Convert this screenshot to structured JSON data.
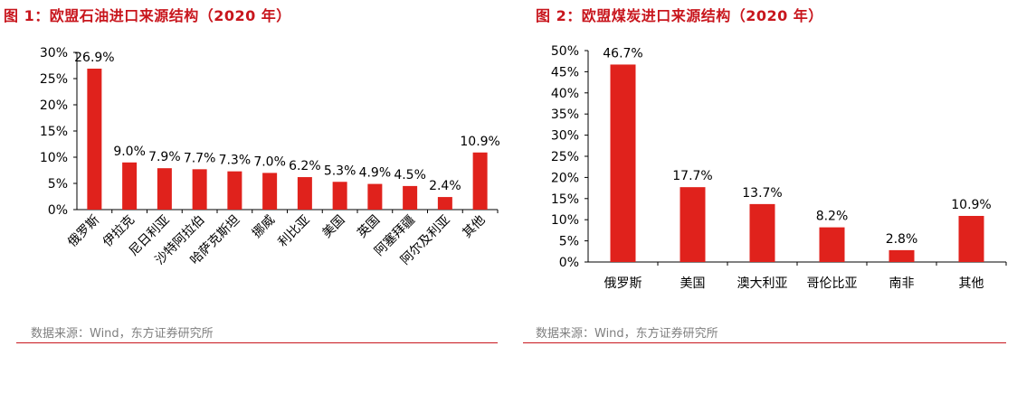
{
  "colors": {
    "title": "#c8161d",
    "bar": "#e0221c",
    "axis": "#000000",
    "source": "#7f7f7f",
    "rule": "#c8161d"
  },
  "figures": [
    {
      "title": "图 1：欧盟石油进口来源结构（2020 年）",
      "source": "数据来源：Wind，东方证券研究所"
    },
    {
      "title": "图 2：欧盟煤炭进口来源结构（2020 年）",
      "source": "数据来源：Wind，东方证券研究所"
    }
  ],
  "chart_data": [
    {
      "type": "bar",
      "title": "图 1：欧盟石油进口来源结构（2020 年）",
      "categories": [
        "俄罗斯",
        "伊拉克",
        "尼日利亚",
        "沙特阿拉伯",
        "哈萨克斯坦",
        "挪威",
        "利比亚",
        "美国",
        "英国",
        "阿塞拜疆",
        "阿尔及利亚",
        "其他"
      ],
      "values": [
        26.9,
        9.0,
        7.9,
        7.7,
        7.3,
        7.0,
        6.2,
        5.3,
        4.9,
        4.5,
        2.4,
        10.9
      ],
      "data_labels": [
        "26.9%",
        "9.0%",
        "7.9%",
        "7.7%",
        "7.3%",
        "7.0%",
        "6.2%",
        "5.3%",
        "4.9%",
        "4.5%",
        "2.4%",
        "10.9%"
      ],
      "yticks": [
        0,
        5,
        10,
        15,
        20,
        25,
        30
      ],
      "ytick_labels": [
        "0%",
        "5%",
        "10%",
        "15%",
        "20%",
        "25%",
        "30%"
      ],
      "ylim": [
        0,
        30
      ],
      "xlabel": "",
      "ylabel": "",
      "grid": false,
      "legend": "none",
      "x_label_rotation": "45deg"
    },
    {
      "type": "bar",
      "title": "图 2：欧盟煤炭进口来源结构（2020 年）",
      "categories": [
        "俄罗斯",
        "美国",
        "澳大利亚",
        "哥伦比亚",
        "南非",
        "其他"
      ],
      "values": [
        46.7,
        17.7,
        13.7,
        8.2,
        2.8,
        10.9
      ],
      "data_labels": [
        "46.7%",
        "17.7%",
        "13.7%",
        "8.2%",
        "2.8%",
        "10.9%"
      ],
      "yticks": [
        0,
        5,
        10,
        15,
        20,
        25,
        30,
        35,
        40,
        45,
        50
      ],
      "ytick_labels": [
        "0%",
        "5%",
        "10%",
        "15%",
        "20%",
        "25%",
        "30%",
        "35%",
        "40%",
        "45%",
        "50%"
      ],
      "ylim": [
        0,
        50
      ],
      "xlabel": "",
      "ylabel": "",
      "grid": false,
      "legend": "none",
      "x_label_rotation": "0deg"
    }
  ]
}
